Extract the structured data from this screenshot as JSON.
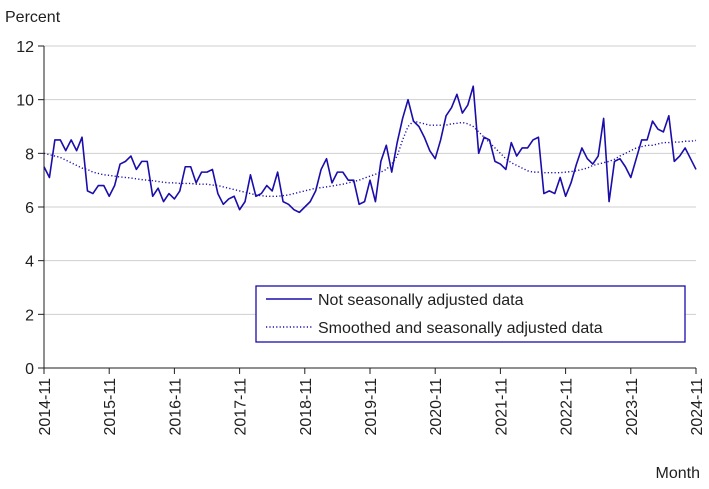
{
  "chart_data": {
    "type": "line",
    "ylabel": "Percent",
    "xlabel": "Month",
    "ylim": [
      0,
      12
    ],
    "yticks": [
      0,
      2,
      4,
      6,
      8,
      10,
      12
    ],
    "xlim": [
      0,
      120
    ],
    "xticks": [
      {
        "label": "2014-11",
        "index": 0
      },
      {
        "label": "2015-11",
        "index": 12
      },
      {
        "label": "2016-11",
        "index": 24
      },
      {
        "label": "2017-11",
        "index": 36
      },
      {
        "label": "2018-11",
        "index": 48
      },
      {
        "label": "2019-11",
        "index": 60
      },
      {
        "label": "2020-11",
        "index": 72
      },
      {
        "label": "2021-11",
        "index": 84
      },
      {
        "label": "2022-11",
        "index": 96
      },
      {
        "label": "2023-11",
        "index": 108
      },
      {
        "label": "2024-11",
        "index": 120
      }
    ],
    "grid": "horizontal",
    "legend_position": "bottom-right",
    "series": [
      {
        "name": "Not seasonally adjusted data",
        "style": "solid",
        "color": "#1a0dab",
        "values": [
          7.5,
          7.1,
          8.5,
          8.5,
          8.1,
          8.5,
          8.1,
          8.6,
          6.6,
          6.5,
          6.8,
          6.8,
          6.4,
          6.8,
          7.6,
          7.7,
          7.9,
          7.4,
          7.7,
          7.7,
          6.4,
          6.7,
          6.2,
          6.5,
          6.3,
          6.6,
          7.5,
          7.5,
          6.9,
          7.3,
          7.3,
          7.4,
          6.5,
          6.1,
          6.3,
          6.4,
          5.9,
          6.2,
          7.2,
          6.4,
          6.5,
          6.8,
          6.6,
          7.3,
          6.2,
          6.1,
          5.9,
          5.8,
          6.0,
          6.2,
          6.6,
          7.4,
          7.8,
          6.9,
          7.3,
          7.3,
          7.0,
          7.0,
          6.1,
          6.2,
          7.0,
          6.2,
          7.7,
          8.3,
          7.3,
          8.4,
          9.3,
          10.0,
          9.2,
          9.0,
          8.6,
          8.1,
          7.8,
          8.5,
          9.4,
          9.7,
          10.2,
          9.5,
          9.8,
          10.5,
          8.0,
          8.6,
          8.5,
          7.7,
          7.6,
          7.4,
          8.4,
          7.9,
          8.2,
          8.2,
          8.5,
          8.6,
          6.5,
          6.6,
          6.5,
          7.1,
          6.4,
          6.9,
          7.6,
          8.2,
          7.8,
          7.6,
          7.9,
          9.3,
          6.2,
          7.7,
          7.8,
          7.5,
          7.1,
          7.8,
          8.5,
          8.5,
          9.2,
          8.9,
          8.8,
          9.4,
          7.7,
          7.9,
          8.2,
          7.8,
          7.4
        ]
      },
      {
        "name": "Smoothed and seasonally adjusted data",
        "style": "dotted",
        "color": "#1a0dab",
        "values": [
          8.0,
          7.95,
          7.9,
          7.85,
          7.75,
          7.65,
          7.55,
          7.45,
          7.4,
          7.3,
          7.25,
          7.2,
          7.18,
          7.15,
          7.12,
          7.1,
          7.08,
          7.05,
          7.02,
          7.0,
          6.98,
          6.95,
          6.92,
          6.9,
          6.9,
          6.88,
          6.88,
          6.88,
          6.85,
          6.85,
          6.85,
          6.82,
          6.8,
          6.75,
          6.7,
          6.65,
          6.6,
          6.55,
          6.5,
          6.45,
          6.42,
          6.4,
          6.4,
          6.4,
          6.42,
          6.45,
          6.5,
          6.55,
          6.6,
          6.65,
          6.7,
          6.72,
          6.75,
          6.78,
          6.82,
          6.85,
          6.9,
          6.95,
          7.0,
          7.08,
          7.15,
          7.22,
          7.3,
          7.4,
          7.6,
          7.9,
          8.5,
          9.0,
          9.2,
          9.15,
          9.1,
          9.05,
          9.05,
          9.05,
          9.05,
          9.1,
          9.12,
          9.15,
          9.1,
          9.0,
          8.8,
          8.6,
          8.4,
          8.2,
          8.0,
          7.8,
          7.65,
          7.55,
          7.45,
          7.35,
          7.3,
          7.3,
          7.28,
          7.28,
          7.28,
          7.28,
          7.3,
          7.32,
          7.35,
          7.4,
          7.45,
          7.55,
          7.6,
          7.65,
          7.7,
          7.78,
          7.9,
          8.0,
          8.1,
          8.2,
          8.25,
          8.3,
          8.3,
          8.35,
          8.4,
          8.4,
          8.42,
          8.42,
          8.45,
          8.45,
          8.48
        ]
      }
    ]
  }
}
